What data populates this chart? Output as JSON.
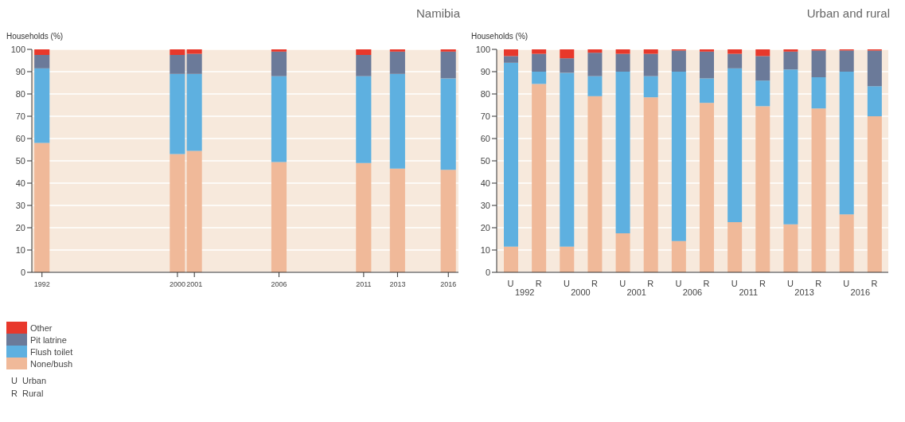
{
  "chart_data": [
    {
      "type": "bar",
      "title": "Namibia",
      "ylabel": "Households (%)",
      "x": [
        1992,
        2000,
        2001,
        2006,
        2011,
        2013,
        2016
      ],
      "xlim": [
        1991.4,
        2016.6
      ],
      "xticks": [
        1992,
        2000,
        2001,
        2006,
        2011,
        2013,
        2016
      ],
      "ylim": [
        0,
        100
      ],
      "yticks": [
        0,
        10,
        20,
        30,
        40,
        50,
        60,
        70,
        80,
        90,
        100
      ],
      "stacked": true,
      "grid": "y",
      "legend": "bottom left",
      "series": [
        {
          "name": "None/bush",
          "color": "#f0b999",
          "values": [
            58,
            53,
            54.5,
            49.5,
            49,
            46.5,
            46
          ]
        },
        {
          "name": "Flush toilet",
          "color": "#5eb0e0",
          "values": [
            33.5,
            36,
            34.5,
            38.5,
            39,
            42.5,
            41
          ]
        },
        {
          "name": "Pit latrine",
          "color": "#6b7a99",
          "values": [
            6,
            8.5,
            9,
            11,
            9.5,
            10,
            12
          ]
        },
        {
          "name": "Other",
          "color": "#e8382b",
          "values": [
            2.5,
            2.5,
            2,
            1,
            2.5,
            1,
            1
          ]
        }
      ]
    },
    {
      "type": "bar",
      "title": "Urban and rural",
      "ylabel": "Households (%)",
      "categories": [
        "U",
        "R",
        "U",
        "R",
        "U",
        "R",
        "U",
        "R",
        "U",
        "R",
        "U",
        "R",
        "U",
        "R"
      ],
      "ylim": [
        0,
        100
      ],
      "yticks": [
        0,
        10,
        20,
        30,
        40,
        50,
        60,
        70,
        80,
        90,
        100
      ],
      "stacked": true,
      "grid": "y",
      "annotations": [
        "1992",
        "2000",
        "2001",
        "2006",
        "2011",
        "2013",
        "2016",
        "U  Urban",
        "R  Rural"
      ],
      "series": [
        {
          "color": "#f0b999",
          "values": [
            11.5,
            84.5,
            11.5,
            79,
            17.5,
            78.5,
            14,
            76,
            22.5,
            74.5,
            21.5,
            73.5,
            26,
            70
          ]
        },
        {
          "color": "#5eb0e0",
          "values": [
            82.5,
            5.5,
            78,
            9,
            72.5,
            9.5,
            76,
            11,
            69,
            11.5,
            69.5,
            14,
            64,
            13.5
          ]
        },
        {
          "color": "#6b7a99",
          "values": [
            3,
            8,
            6.5,
            10.5,
            8,
            10,
            9.5,
            12,
            6.5,
            11,
            8,
            12,
            9.5,
            16
          ]
        },
        {
          "color": "#e8382b",
          "values": [
            3,
            2,
            4,
            1.5,
            2,
            2,
            0.5,
            1,
            2,
            3,
            1,
            0.5,
            0.5,
            0.5
          ]
        }
      ]
    }
  ]
}
